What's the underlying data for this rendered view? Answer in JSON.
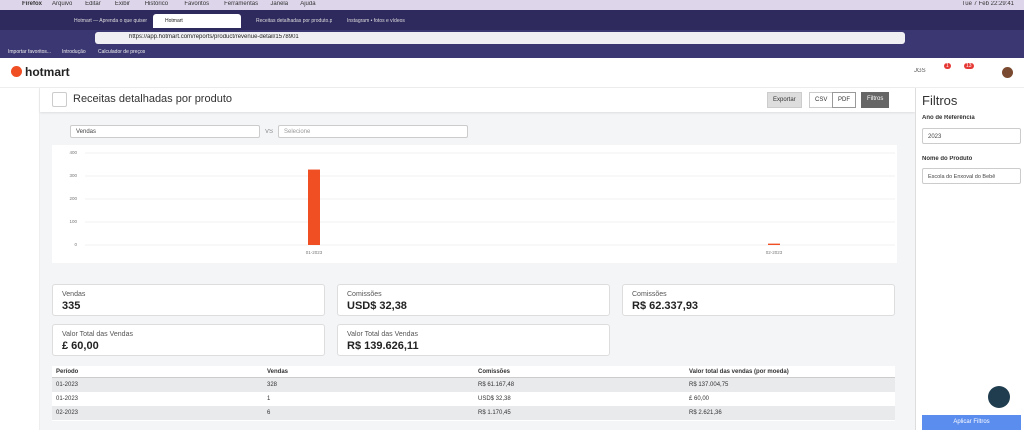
{
  "menubar": {
    "app": "Firefox",
    "items": [
      "Arquivo",
      "Editar",
      "Exibir",
      "Histórico",
      "Favoritos",
      "Ferramentas",
      "Janela",
      "Ajuda"
    ],
    "clock": "Tue 7 Feb 22:29:41"
  },
  "tabs": [
    "Hotmart — Aprenda o que quiser",
    "Hotmart",
    "Receitas detalhadas por produto.pdf",
    "Instagram • fotos e vídeos"
  ],
  "url": "https://app.hotmart.com/reports/product/revenue-detail/1578901",
  "bookmarks": [
    "Importar favoritos...",
    "Introdução",
    "Calculador de preços"
  ],
  "header": {
    "brand": "hotmart",
    "user": "JGS",
    "badges": [
      "1",
      "13"
    ]
  },
  "page": {
    "title": "Receitas detalhadas por produto",
    "buttons": [
      "Exportar",
      "CSV",
      "PDF",
      "Filtros"
    ],
    "select_a": "Vendas",
    "vs": "VS",
    "select_b": "Selecione"
  },
  "chart_data": {
    "type": "bar",
    "categories": [
      "01-2023",
      "02-2023"
    ],
    "values": [
      328,
      6
    ],
    "color": "#f04e23",
    "ylim": [
      0,
      400
    ],
    "yticks": [
      0,
      100,
      200,
      300,
      400
    ],
    "grid": true
  },
  "cards": [
    {
      "label": "Vendas",
      "value": "335"
    },
    {
      "label": "Comissões",
      "value": "USD$ 32,38"
    },
    {
      "label": "Comissões",
      "value": "R$ 62.337,93"
    },
    {
      "label": "Valor Total das Vendas",
      "value": "£ 60,00"
    },
    {
      "label": "Valor Total das Vendas",
      "value": "R$ 139.626,11"
    }
  ],
  "table": {
    "headers": [
      "Período",
      "Vendas",
      "Comissões",
      "Valor total das vendas (por moeda)"
    ],
    "rows": [
      [
        "01-2023",
        "328",
        "R$ 61.167,48",
        "R$ 137.004,75"
      ],
      [
        "01-2023",
        "1",
        "USD$ 32,38",
        "£ 60,00"
      ],
      [
        "02-2023",
        "6",
        "R$ 1.170,45",
        "R$ 2.621,36"
      ]
    ]
  },
  "filters": {
    "title": "Filtros",
    "year_label": "Ano de Referência",
    "year": "2023",
    "product_label": "Nome do Produto",
    "product": "Escola do Enxoval do Bebê",
    "apply": "Aplicar Filtros"
  }
}
